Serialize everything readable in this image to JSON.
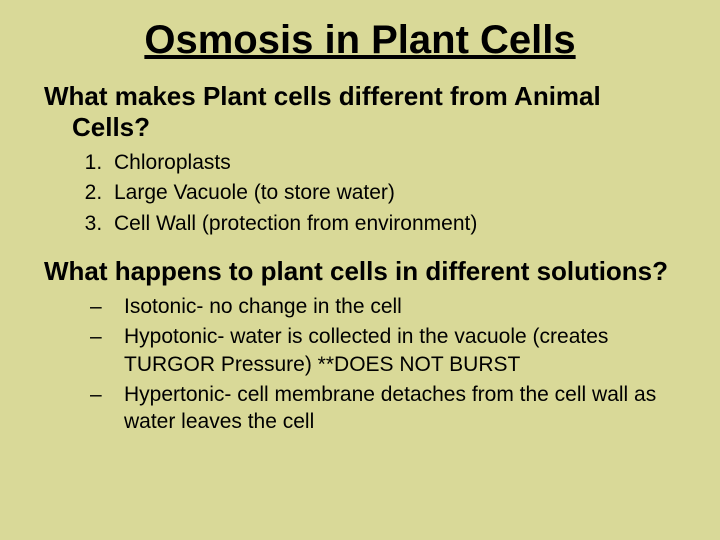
{
  "title": "Osmosis in Plant Cells",
  "question1": "What makes Plant cells different from Animal Cells?",
  "list1": {
    "item1": "Chloroplasts",
    "item2": "Large Vacuole (to store water)",
    "item3": "Cell Wall (protection from environment)"
  },
  "question2": "What happens to plant cells in different solutions?",
  "list2": {
    "item1": "Isotonic- no change in the cell",
    "item2": "Hypotonic- water is collected in the vacuole (creates TURGOR Pressure)  **DOES NOT BURST",
    "item3": "Hypertonic- cell membrane detaches from the cell wall as water leaves the cell"
  }
}
